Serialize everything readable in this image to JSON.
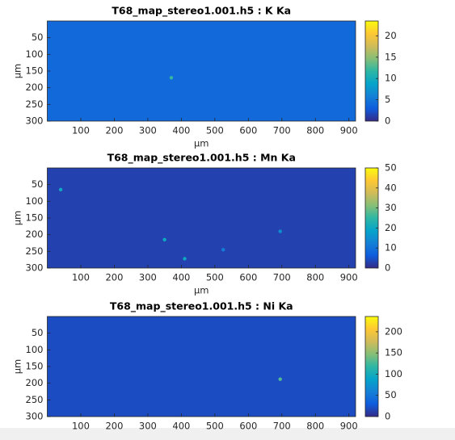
{
  "chart_data": [
    {
      "type": "heatmap",
      "title": "T68_map_stereo1.001.h5 : K Ka",
      "xlabel": "μm",
      "ylabel": "μm",
      "xlim": [
        0,
        920
      ],
      "xticks": [
        100,
        200,
        300,
        400,
        500,
        600,
        700,
        800,
        900
      ],
      "ylim": [
        0,
        300
      ],
      "yticks": [
        50,
        100,
        150,
        200,
        250,
        300
      ],
      "y_reversed": true,
      "colormap": "parula",
      "clim": [
        0,
        23.5
      ],
      "cticks": [
        0,
        5,
        10,
        15,
        20
      ],
      "level": 4,
      "hotspots": {
        "x": [
          370
        ],
        "y": [
          170
        ],
        "values": [
          12
        ]
      }
    },
    {
      "type": "heatmap",
      "title": "T68_map_stereo1.001.h5 : Mn Ka",
      "xlabel": "μm",
      "ylabel": "μm",
      "xlim": [
        0,
        920
      ],
      "xticks": [
        100,
        200,
        300,
        400,
        500,
        600,
        700,
        800,
        900
      ],
      "ylim": [
        0,
        300
      ],
      "yticks": [
        50,
        100,
        150,
        200,
        250,
        300
      ],
      "y_reversed": true,
      "colormap": "parula",
      "clim": [
        0,
        50
      ],
      "cticks": [
        0,
        10,
        20,
        30,
        40,
        50
      ],
      "level": 3,
      "hotspots": {
        "x": [
          40,
          350,
          410,
          695,
          525
        ],
        "y": [
          65,
          215,
          272,
          190,
          245
        ],
        "values": [
          20,
          20,
          20,
          15,
          12
        ]
      }
    },
    {
      "type": "heatmap",
      "title": "T68_map_stereo1.001.h5 : Ni Ka",
      "ylabel": "μm",
      "xlim": [
        0,
        920
      ],
      "xticks": [
        100,
        200,
        300,
        400,
        500,
        600,
        700,
        800,
        900
      ],
      "ylim": [
        0,
        300
      ],
      "yticks": [
        50,
        100,
        150,
        200,
        250,
        300
      ],
      "y_reversed": true,
      "colormap": "parula",
      "clim": [
        0,
        236
      ],
      "cticks": [
        0,
        50,
        100,
        150,
        200
      ],
      "level": 20,
      "hotspots": {
        "x": [
          695
        ],
        "y": [
          188
        ],
        "values": [
          130
        ]
      }
    }
  ]
}
